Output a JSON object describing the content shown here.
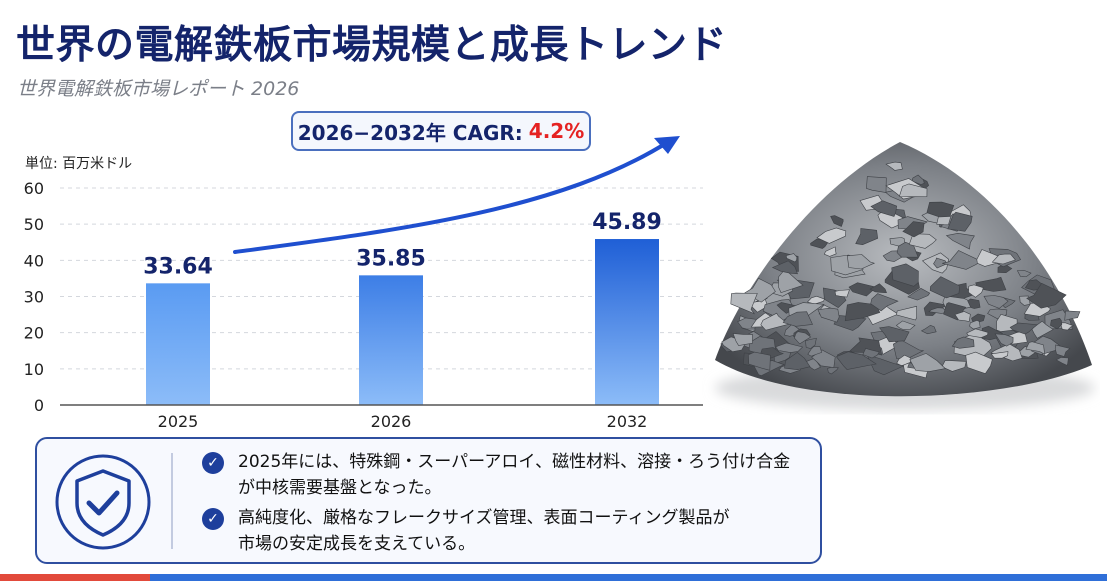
{
  "header": {
    "title": "世界の電解鉄板市場規模と成長トレンド",
    "subtitle": "世界電解鉄板市場レポート 2026"
  },
  "cagr": {
    "label": "2026−2032年 CAGR:",
    "value": "4.2%"
  },
  "unit_label": "単位: 百万米ドル",
  "chart_data": {
    "type": "bar",
    "categories": [
      "2025",
      "2026",
      "2032"
    ],
    "values": [
      33.64,
      35.85,
      45.89
    ],
    "value_labels": [
      "33.64",
      "35.85",
      "45.89"
    ],
    "ylim": [
      0,
      60
    ],
    "yticks": [
      "0",
      "10",
      "20",
      "30",
      "40",
      "50",
      "60"
    ],
    "ytick_values": [
      0,
      10,
      20,
      30,
      40,
      50,
      60
    ],
    "grid": true,
    "bar_colors": [
      "#5a9bf2",
      "#3d7ee6",
      "#1f5fd6"
    ],
    "trend_arrow_color": "#1f4fcf"
  },
  "image": {
    "subject": "pile-of-electrolytic-iron-flakes-icon"
  },
  "info": {
    "icon": "shield-check-icon",
    "bullets": [
      {
        "line1": "2025年には、特殊鋼・スーパーアロイ、磁性材料、溶接・ろう付け合金",
        "line2": "が中核需要基盤となった。"
      },
      {
        "line1": "高純度化、厳格なフレークサイズ管理、表面コーティング製品が",
        "line2": "市場の安定成長を支えている。"
      }
    ]
  },
  "colors": {
    "title": "#14246b",
    "accent": "#1e3f9c",
    "cagr_value": "#e52222"
  }
}
